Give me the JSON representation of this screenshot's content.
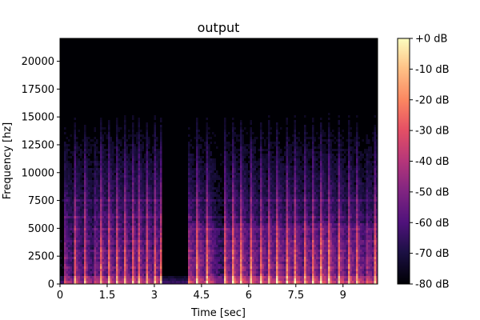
{
  "chart_data": {
    "type": "heatmap",
    "title": "output",
    "xlabel": "Time [sec]",
    "ylabel": "Frequency [hz]",
    "xlim": [
      0,
      10.1
    ],
    "ylim": [
      0,
      22050
    ],
    "x_ticks": [
      0,
      1.5,
      3,
      4.5,
      6,
      7.5,
      9
    ],
    "x_tick_labels": [
      "0",
      "1.5",
      "3",
      "4.5",
      "6",
      "7.5",
      "9"
    ],
    "y_ticks": [
      0,
      2500,
      5000,
      7500,
      10000,
      12500,
      15000,
      17500,
      20000
    ],
    "y_tick_labels": [
      "0",
      "2500",
      "5000",
      "7500",
      "10000",
      "12500",
      "15000",
      "17500",
      "20000"
    ],
    "colormap": "magma",
    "colorbar": {
      "min_db": -80,
      "max_db": 0,
      "ticks": [
        0,
        -10,
        -20,
        -30,
        -40,
        -50,
        -60,
        -70,
        -80
      ],
      "tick_labels": [
        "+0 dB",
        "-10 dB",
        "-20 dB",
        "-30 dB",
        "-40 dB",
        "-50 dB",
        "-60 dB",
        "-70 dB",
        "-80 dB"
      ]
    },
    "onsets_sec": [
      0.1,
      0.45,
      0.75,
      1.05,
      1.3,
      1.55,
      1.8,
      2.05,
      2.3,
      2.5,
      2.75,
      3.0,
      3.2,
      4.05,
      4.35,
      4.65,
      5.2,
      5.5,
      5.75,
      6.05,
      6.35,
      6.6,
      6.9,
      7.2,
      7.45,
      7.75,
      8.0,
      8.3,
      8.55,
      8.85,
      9.15,
      9.4,
      9.7,
      10.0
    ],
    "harmonic_bands_hz": [
      700,
      1700,
      2400,
      3050,
      3900,
      5000,
      6200,
      7600
    ],
    "gap_sec": [
      3.25,
      4.05
    ],
    "grid": false
  }
}
